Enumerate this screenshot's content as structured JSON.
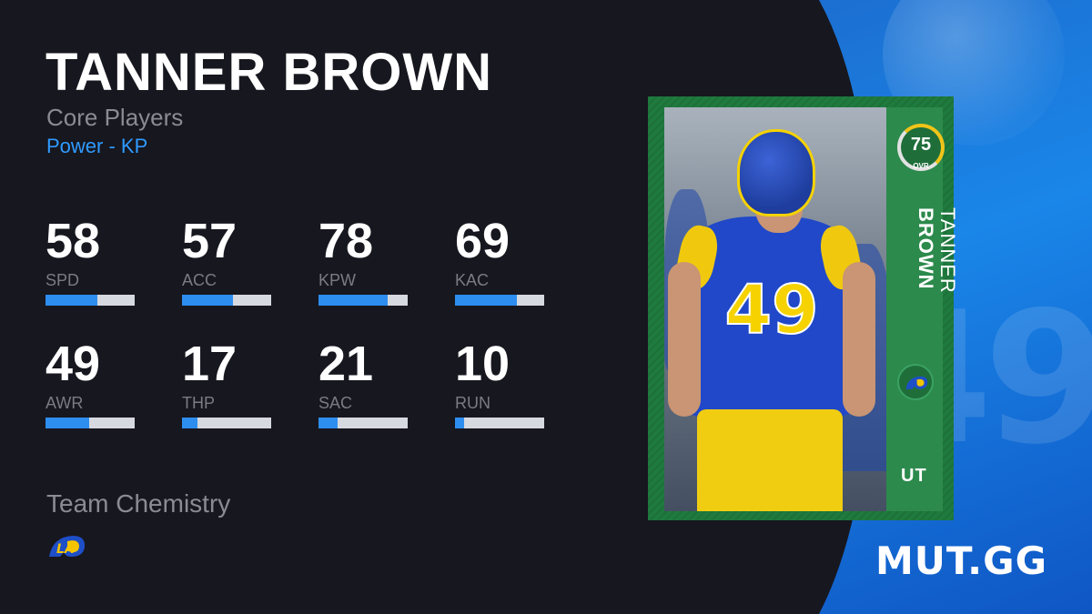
{
  "player": {
    "name": "TANNER BROWN",
    "program": "Core Players",
    "archetype": "Power - KP"
  },
  "stats": [
    {
      "label": "SPD",
      "value": "58",
      "level": 0.58
    },
    {
      "label": "ACC",
      "value": "57",
      "level": 0.57
    },
    {
      "label": "KPW",
      "value": "78",
      "level": 0.78
    },
    {
      "label": "KAC",
      "value": "69",
      "level": 0.69
    },
    {
      "label": "AWR",
      "value": "49",
      "level": 0.49
    },
    {
      "label": "THP",
      "value": "17",
      "level": 0.17
    },
    {
      "label": "SAC",
      "value": "21",
      "level": 0.21
    },
    {
      "label": "RUN",
      "value": "10",
      "level": 0.1
    }
  ],
  "chemistry": {
    "title": "Team Chemistry",
    "team_logo_icon": "rams-logo-icon"
  },
  "card": {
    "ovr": "75",
    "ovr_label": "OVR",
    "first_name": "TANNER",
    "last_name": "BROWN",
    "jersey_number": "49",
    "badge": "UT",
    "team_logo_icon": "rams-logo-icon",
    "frame_color": "#1f7a3e"
  },
  "brand": {
    "name": "MUT.GG"
  },
  "colors": {
    "background": "#17171f",
    "accent": "#2f9bff",
    "bar_fill": "#2d8ef0",
    "bar_track": "#d7d9e0",
    "panel_blue": "#1a86e8",
    "team_blue": "#2048c8",
    "team_gold": "#f5d200"
  }
}
